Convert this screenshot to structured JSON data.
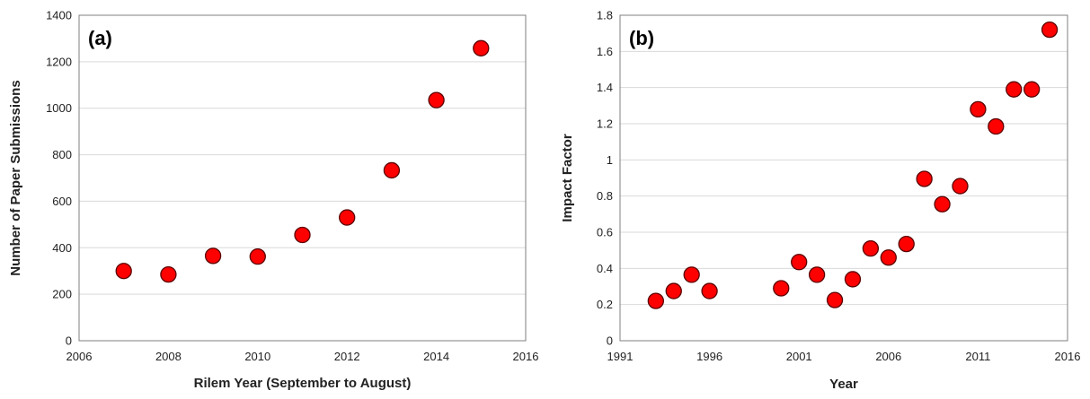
{
  "chart_data": [
    {
      "type": "scatter",
      "panel_label": "(a)",
      "xlabel": "Rilem Year (September to August)",
      "ylabel": "Number of Paper Submissions",
      "xlim": [
        2006,
        2016
      ],
      "ylim": [
        0,
        1400
      ],
      "xticks": [
        2006,
        2008,
        2010,
        2012,
        2014,
        2016
      ],
      "yticks": [
        0,
        200,
        400,
        600,
        800,
        1000,
        1200,
        1400
      ],
      "grid": "horizontal",
      "legend": "none",
      "marker_color": "#ff0000",
      "marker_edge_color": "#5a0000",
      "points": [
        {
          "x": 2007,
          "y": 300
        },
        {
          "x": 2008,
          "y": 285
        },
        {
          "x": 2009,
          "y": 365
        },
        {
          "x": 2010,
          "y": 362
        },
        {
          "x": 2011,
          "y": 455
        },
        {
          "x": 2012,
          "y": 530
        },
        {
          "x": 2013,
          "y": 733
        },
        {
          "x": 2014,
          "y": 1035
        },
        {
          "x": 2015,
          "y": 1258
        }
      ]
    },
    {
      "type": "scatter",
      "panel_label": "(b)",
      "xlabel": "Year",
      "ylabel": "Impact Factor",
      "xlim": [
        1991,
        2016
      ],
      "ylim": [
        0,
        1.8
      ],
      "xticks": [
        1991,
        1996,
        2001,
        2006,
        2011,
        2016
      ],
      "yticks": [
        0,
        0.2,
        0.4,
        0.6,
        0.8,
        1,
        1.2,
        1.4,
        1.6,
        1.8
      ],
      "grid": "horizontal",
      "legend": "none",
      "marker_color": "#ff0000",
      "marker_edge_color": "#5a0000",
      "points": [
        {
          "x": 1993,
          "y": 0.22
        },
        {
          "x": 1994,
          "y": 0.275
        },
        {
          "x": 1995,
          "y": 0.365
        },
        {
          "x": 1996,
          "y": 0.275
        },
        {
          "x": 2000,
          "y": 0.29
        },
        {
          "x": 2001,
          "y": 0.435
        },
        {
          "x": 2002,
          "y": 0.365
        },
        {
          "x": 2003,
          "y": 0.225
        },
        {
          "x": 2004,
          "y": 0.34
        },
        {
          "x": 2005,
          "y": 0.51
        },
        {
          "x": 2006,
          "y": 0.46
        },
        {
          "x": 2007,
          "y": 0.535
        },
        {
          "x": 2008,
          "y": 0.895
        },
        {
          "x": 2009,
          "y": 0.755
        },
        {
          "x": 2010,
          "y": 0.855
        },
        {
          "x": 2011,
          "y": 1.28
        },
        {
          "x": 2012,
          "y": 1.185
        },
        {
          "x": 2013,
          "y": 1.39
        },
        {
          "x": 2014,
          "y": 1.39
        },
        {
          "x": 2015,
          "y": 1.72
        }
      ]
    }
  ]
}
